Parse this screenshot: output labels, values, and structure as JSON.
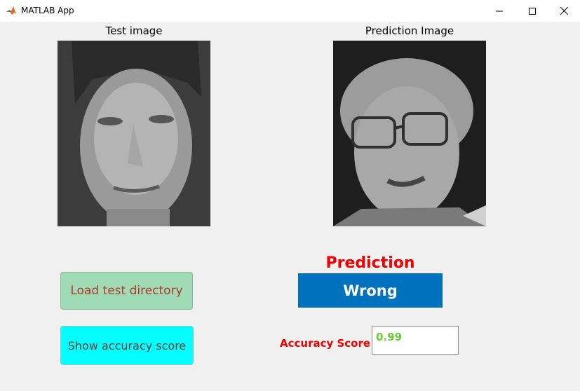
{
  "window": {
    "title": "MATLAB App",
    "icon": "matlab-logo-icon"
  },
  "test_panel": {
    "title": "Test image"
  },
  "prediction_panel": {
    "title": "Prediction Image"
  },
  "buttons": {
    "load_label": "Load test directory",
    "score_label": "Show accuracy score"
  },
  "prediction": {
    "label": "Prediction",
    "value": "Wrong",
    "label_color": "#ee0000",
    "box_color": "#0072bd"
  },
  "accuracy": {
    "label": "Accuracy Score",
    "value": "0.99",
    "value_color": "#66cc33"
  }
}
